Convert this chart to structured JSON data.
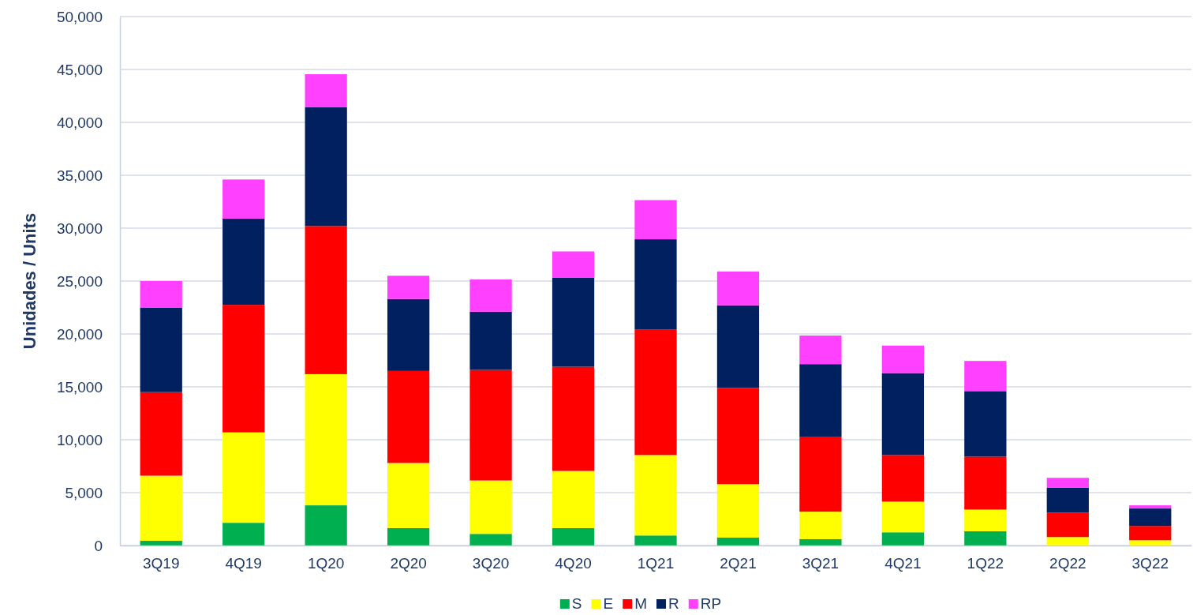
{
  "chart_data": {
    "type": "bar",
    "stacked": true,
    "ylabel": "Unidades / Units",
    "categories": [
      "3Q19",
      "4Q19",
      "1Q20",
      "2Q20",
      "3Q20",
      "4Q20",
      "1Q21",
      "2Q21",
      "3Q21",
      "4Q21",
      "1Q22",
      "2Q22",
      "3Q22"
    ],
    "series": [
      {
        "name": "S",
        "color": "#00b050",
        "values": [
          450,
          2150,
          3800,
          1650,
          1100,
          1650,
          950,
          750,
          600,
          1250,
          1350,
          0,
          0
        ]
      },
      {
        "name": "E",
        "color": "#ffff00",
        "values": [
          6150,
          8550,
          12400,
          6150,
          5050,
          5400,
          7600,
          5050,
          2600,
          2900,
          2050,
          800,
          500
        ]
      },
      {
        "name": "M",
        "color": "#ff0000",
        "values": [
          7900,
          12050,
          14000,
          8700,
          10450,
          9850,
          11850,
          9100,
          7100,
          4400,
          5000,
          2300,
          1350
        ]
      },
      {
        "name": "R",
        "color": "#002060",
        "values": [
          8000,
          8150,
          11250,
          6800,
          5500,
          8400,
          8550,
          7800,
          6850,
          7750,
          6200,
          2350,
          1650
        ]
      },
      {
        "name": "RP",
        "color": "#ff40ff",
        "values": [
          2500,
          3700,
          3100,
          2200,
          3050,
          2500,
          3700,
          3200,
          2700,
          2600,
          2850,
          950,
          300
        ]
      }
    ],
    "ylim": [
      0,
      50000
    ],
    "yticks": [
      {
        "value": 0,
        "label": "0"
      },
      {
        "value": 5000,
        "label": "5,000"
      },
      {
        "value": 10000,
        "label": "10,000"
      },
      {
        "value": 15000,
        "label": "15,000"
      },
      {
        "value": 20000,
        "label": "20,000"
      },
      {
        "value": 25000,
        "label": "25,000"
      },
      {
        "value": 30000,
        "label": "30,000"
      },
      {
        "value": 35000,
        "label": "35,000"
      },
      {
        "value": 40000,
        "label": "40,000"
      },
      {
        "value": 45000,
        "label": "45,000"
      },
      {
        "value": 50000,
        "label": "50,000"
      }
    ],
    "grid": "y",
    "legend": "bottom"
  }
}
